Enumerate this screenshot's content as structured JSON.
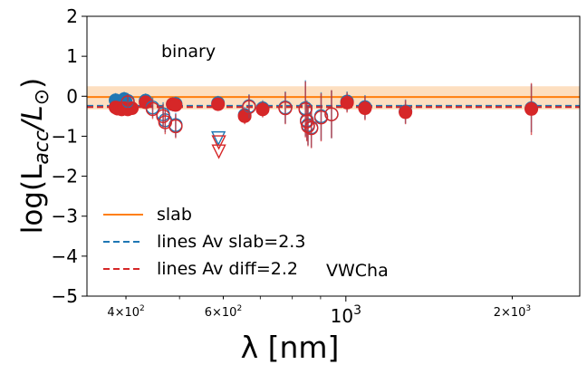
{
  "chart_data": {
    "type": "scatter",
    "ylabel": "log(L$_{acc}$/L$_\\odot$)",
    "xlabel": "λ [nm]",
    "xscale": "log",
    "xlim": [
      340,
      2650
    ],
    "ylim": [
      -5,
      2
    ],
    "annotations": {
      "top": "binary",
      "bottom": "VWCha"
    },
    "y_ticks": [
      2,
      1,
      0,
      -1,
      -2,
      -3,
      -4,
      -5
    ],
    "x_ticks_major": [
      {
        "value": 1000,
        "label": "10",
        "exp": "3"
      }
    ],
    "x_ticks_minor": [
      {
        "value": 400,
        "label": "4×10",
        "exp": "2"
      },
      {
        "value": 600,
        "label": "6×10",
        "exp": "2"
      },
      {
        "value": 2000,
        "label": "2×10",
        "exp": "3"
      }
    ],
    "slab": {
      "value": -0.02,
      "band": [
        -0.33,
        0.25
      ],
      "color": "#ff7f0e",
      "band_color": "#fdd9b5"
    },
    "lines_slab": {
      "value": -0.24,
      "color": "#1f77b4"
    },
    "lines_diff": {
      "value": -0.27,
      "color": "#d62728"
    },
    "legend": [
      {
        "label": "slab",
        "color": "#ff7f0e",
        "style": "solid"
      },
      {
        "label": "lines Av slab=2.3",
        "color": "#1f77b4",
        "style": "dashed"
      },
      {
        "label": "lines Av diff=2.2",
        "color": "#d62728",
        "style": "dashed"
      }
    ],
    "series": [
      {
        "marker": "filled-circle",
        "color": "#1f77b4",
        "points": [
          {
            "x": 383,
            "y": -0.1,
            "err": 0.18
          },
          {
            "x": 386,
            "y": -0.12,
            "err": 0.18
          },
          {
            "x": 389,
            "y": -0.2,
            "err": 0.18
          },
          {
            "x": 397,
            "y": -0.07,
            "err": 0.18
          },
          {
            "x": 400,
            "y": -0.15,
            "err": 0.18
          },
          {
            "x": 434,
            "y": -0.11,
            "err": 0.18
          },
          {
            "x": 486,
            "y": -0.2,
            "err": 0.18
          },
          {
            "x": 492,
            "y": -0.19,
            "err": 0.18
          },
          {
            "x": 587,
            "y": -0.17,
            "err": 0.18
          },
          {
            "x": 656,
            "y": -0.47,
            "err": 0.2
          },
          {
            "x": 707,
            "y": -0.3,
            "err": 0.2
          },
          {
            "x": 1005,
            "y": -0.13,
            "err": 0.25
          },
          {
            "x": 1083,
            "y": -0.27,
            "err": 0.3
          },
          {
            "x": 1282,
            "y": -0.38,
            "err": 0.3
          },
          {
            "x": 2166,
            "y": -0.3,
            "err": 0.6
          }
        ]
      },
      {
        "marker": "filled-circle",
        "color": "#d62728",
        "points": [
          {
            "x": 383,
            "y": -0.28,
            "err": 0.15
          },
          {
            "x": 386,
            "y": -0.31,
            "err": 0.15
          },
          {
            "x": 389,
            "y": -0.3,
            "err": 0.15
          },
          {
            "x": 393,
            "y": -0.33,
            "err": 0.15
          },
          {
            "x": 397,
            "y": -0.3,
            "err": 0.15
          },
          {
            "x": 403,
            "y": -0.33,
            "err": 0.15
          },
          {
            "x": 410,
            "y": -0.3,
            "err": 0.15
          },
          {
            "x": 434,
            "y": -0.15,
            "err": 0.15
          },
          {
            "x": 486,
            "y": -0.2,
            "err": 0.15
          },
          {
            "x": 492,
            "y": -0.22,
            "err": 0.15
          },
          {
            "x": 587,
            "y": -0.2,
            "err": 0.15
          },
          {
            "x": 656,
            "y": -0.5,
            "err": 0.2
          },
          {
            "x": 707,
            "y": -0.33,
            "err": 0.2
          },
          {
            "x": 1005,
            "y": -0.16,
            "err": 0.25
          },
          {
            "x": 1083,
            "y": -0.3,
            "err": 0.3
          },
          {
            "x": 1282,
            "y": -0.4,
            "err": 0.3
          },
          {
            "x": 2166,
            "y": -0.32,
            "err": 0.65
          }
        ]
      },
      {
        "marker": "open-circle",
        "color": "#1f77b4",
        "points": [
          {
            "x": 403,
            "y": -0.12,
            "err": 0.2
          },
          {
            "x": 447,
            "y": -0.28,
            "err": 0.25
          },
          {
            "x": 467,
            "y": -0.45,
            "err": 0.3
          },
          {
            "x": 471,
            "y": -0.6,
            "err": 0.3
          },
          {
            "x": 492,
            "y": -0.72,
            "err": 0.3
          },
          {
            "x": 668,
            "y": -0.25,
            "err": 0.3
          },
          {
            "x": 777,
            "y": -0.28,
            "err": 0.4
          },
          {
            "x": 845,
            "y": -0.3,
            "err": 0.7
          },
          {
            "x": 850,
            "y": -0.6,
            "err": 0.5
          },
          {
            "x": 854,
            "y": -0.72,
            "err": 0.5
          },
          {
            "x": 866,
            "y": -0.78,
            "err": 0.5
          },
          {
            "x": 902,
            "y": -0.5,
            "err": 0.6
          },
          {
            "x": 942,
            "y": -0.45,
            "err": 0.6
          }
        ]
      },
      {
        "marker": "open-circle",
        "color": "#d62728",
        "points": [
          {
            "x": 403,
            "y": -0.15,
            "err": 0.2
          },
          {
            "x": 447,
            "y": -0.32,
            "err": 0.25
          },
          {
            "x": 467,
            "y": -0.5,
            "err": 0.3
          },
          {
            "x": 471,
            "y": -0.65,
            "err": 0.3
          },
          {
            "x": 492,
            "y": -0.75,
            "err": 0.3
          },
          {
            "x": 668,
            "y": -0.27,
            "err": 0.3
          },
          {
            "x": 777,
            "y": -0.3,
            "err": 0.4
          },
          {
            "x": 845,
            "y": -0.33,
            "err": 0.7
          },
          {
            "x": 850,
            "y": -0.63,
            "err": 0.5
          },
          {
            "x": 854,
            "y": -0.75,
            "err": 0.5
          },
          {
            "x": 866,
            "y": -0.8,
            "err": 0.5
          },
          {
            "x": 902,
            "y": -0.53,
            "err": 0.6
          },
          {
            "x": 942,
            "y": -0.45,
            "err": 0.6
          }
        ]
      },
      {
        "marker": "open-triangle-down",
        "color": "#1f77b4",
        "points": [
          {
            "x": 588,
            "y": -1.05
          }
        ]
      },
      {
        "marker": "open-triangle-down",
        "color": "#d62728",
        "points": [
          {
            "x": 589,
            "y": -1.15
          },
          {
            "x": 589,
            "y": -1.38
          }
        ]
      }
    ]
  }
}
